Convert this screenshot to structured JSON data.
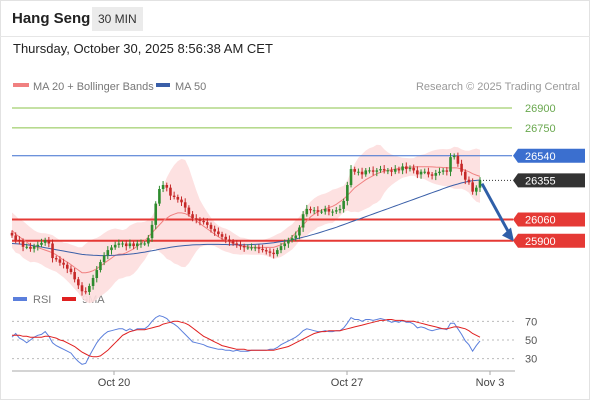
{
  "header": {
    "symbol": "Hang Seng",
    "interval": "30 MIN",
    "timestamp": "Thursday, October 30, 2025 8:56:38 AM CET"
  },
  "legend": {
    "bollinger_label": "MA 20 + Bollinger Bands",
    "ma50_label": "MA 50",
    "rsi_label": "RSI",
    "rsi_ma_label": "9MA"
  },
  "source": "Research © 2025 Trading Central",
  "colors": {
    "bullish_candle": "#2e8b2e",
    "bearish_candle": "#c62828",
    "bollinger_fill": "#fddede",
    "ma20": "#f08080",
    "ma50": "#3a5fa8",
    "rsi": "#5b7fdc",
    "rsi_ma": "#e02020",
    "resistance": "#8bc34a",
    "support": "#e53935",
    "pivot": "#3b6fcf",
    "current": "#333333"
  },
  "chart_data": [
    {
      "type": "candlestick",
      "title": "Hang Seng",
      "x_tick_labels": [
        "Oct 20",
        "Oct 27",
        "Nov 3"
      ],
      "ylim": [
        25620,
        26960
      ],
      "levels": [
        {
          "value": 26900,
          "label": "26900",
          "kind": "resistance"
        },
        {
          "value": 26750,
          "label": "26750",
          "kind": "resistance"
        },
        {
          "value": 26540,
          "label": "26540",
          "kind": "pivot"
        },
        {
          "value": 26355,
          "label": "26355",
          "kind": "current"
        },
        {
          "value": 26060,
          "label": "26060",
          "kind": "support"
        },
        {
          "value": 25900,
          "label": "25900",
          "kind": "support"
        }
      ],
      "close": [
        25940,
        25905,
        25900,
        25855,
        25855,
        25840,
        25860,
        25870,
        25885,
        25905,
        25880,
        25770,
        25760,
        25735,
        25720,
        25690,
        25665,
        25610,
        25565,
        25520,
        25515,
        25560,
        25620,
        25680,
        25740,
        25790,
        25830,
        25850,
        25870,
        25880,
        25880,
        25860,
        25880,
        25860,
        25880,
        25880,
        25880,
        25920,
        26020,
        26180,
        26290,
        26320,
        26300,
        26240,
        26230,
        26210,
        26190,
        26150,
        26100,
        26070,
        26060,
        26050,
        26040,
        26020,
        25990,
        25970,
        25950,
        25930,
        25910,
        25895,
        25880,
        25870,
        25860,
        25850,
        25850,
        25850,
        25850,
        25840,
        25830,
        25820,
        25810,
        25800,
        25830,
        25860,
        25880,
        25905,
        25920,
        25940,
        26000,
        26100,
        26140,
        26130,
        26130,
        26120,
        26120,
        26140,
        26120,
        26120,
        26130,
        26140,
        26200,
        26320,
        26440,
        26420,
        26420,
        26400,
        26430,
        26430,
        26420,
        26430,
        26440,
        26430,
        26430,
        26420,
        26440,
        26430,
        26460,
        26440,
        26450,
        26430,
        26400,
        26420,
        26420,
        26400,
        26390,
        26410,
        26420,
        26430,
        26420,
        26530,
        26540,
        26480,
        26420,
        26360,
        26340,
        26270,
        26300,
        26355
      ],
      "ma20": [
        25980,
        25950,
        25930,
        25910,
        25890,
        25870,
        25860,
        25850,
        25840,
        25830,
        25820,
        25810,
        25795,
        25775,
        25755,
        25740,
        25720,
        25700,
        25680,
        25660,
        25660,
        25665,
        25675,
        25690,
        25710,
        25730,
        25750,
        25770,
        25790,
        25800,
        25800,
        25810,
        25825,
        25840,
        25860,
        25880,
        25900,
        25930,
        25960,
        25990,
        26020,
        26050,
        26070,
        26090,
        26100,
        26110,
        26110,
        26105,
        26090,
        26070,
        26050,
        26030,
        26010,
        25990,
        25970,
        25950,
        25930,
        25915,
        25905,
        25895,
        25880,
        25870,
        25860,
        25860,
        25855,
        25850,
        25850,
        25850,
        25850,
        25850,
        25850,
        25850,
        25860,
        25870,
        25890,
        25910,
        25930,
        25960,
        25990,
        26020,
        26050,
        26080,
        26100,
        26120,
        26130,
        26140,
        26150,
        26160,
        26175,
        26195,
        26215,
        26240,
        26270,
        26300,
        26320,
        26340,
        26360,
        26375,
        26390,
        26405,
        26415,
        26425,
        26430,
        26435,
        26440,
        26445,
        26450,
        26452,
        26455,
        26456,
        26458,
        26458,
        26458,
        26457,
        26456,
        26455,
        26454,
        26452,
        26450,
        26448,
        26450,
        26448,
        26440,
        26430,
        26420,
        26405,
        26395,
        26385
      ],
      "ma50": [
        25880,
        25878,
        25876,
        25873,
        25870,
        25866,
        25862,
        25858,
        25853,
        25848,
        25843,
        25838,
        25833,
        25828,
        25823,
        25818,
        25813,
        25808,
        25803,
        25798,
        25795,
        25793,
        25791,
        25790,
        25789,
        25789,
        25789,
        25790,
        25791,
        25793,
        25795,
        25797,
        25800,
        25803,
        25807,
        25811,
        25815,
        25820,
        25825,
        25830,
        25836,
        25841,
        25846,
        25851,
        25855,
        25859,
        25862,
        25865,
        25867,
        25869,
        25870,
        25871,
        25872,
        25873,
        25873,
        25873,
        25873,
        25872,
        25872,
        25871,
        25870,
        25870,
        25870,
        25870,
        25871,
        25872,
        25873,
        25875,
        25877,
        25880,
        25883,
        25886,
        25890,
        25894,
        25898,
        25903,
        25908,
        25914,
        25920,
        25927,
        25934,
        25942,
        25950,
        25958,
        25966,
        25975,
        25984,
        25993,
        26002,
        26012,
        26022,
        26032,
        26042,
        26052,
        26062,
        26072,
        26082,
        26092,
        26102,
        26112,
        26122,
        26132,
        26142,
        26152,
        26162,
        26172,
        26182,
        26192,
        26202,
        26212,
        26222,
        26232,
        26242,
        26252,
        26262,
        26272,
        26282,
        26292,
        26302,
        26312,
        26320,
        26328,
        26336,
        26342,
        26348,
        26352,
        26355,
        26358
      ]
    },
    {
      "type": "line",
      "title": "RSI",
      "ylim": [
        20,
        80
      ],
      "y_ticks": [
        30,
        50,
        70
      ],
      "series": [
        {
          "name": "RSI",
          "values": [
            53,
            57,
            52,
            50,
            47,
            50,
            53,
            55,
            56,
            59,
            54,
            47,
            44,
            42,
            40,
            38,
            36,
            31,
            27,
            24,
            25,
            33,
            40,
            47,
            52,
            56,
            59,
            60,
            61,
            62,
            62,
            60,
            62,
            60,
            62,
            62,
            62,
            65,
            70,
            74,
            76,
            75,
            73,
            69,
            67,
            64,
            60,
            56,
            52,
            48,
            47,
            46,
            45,
            43,
            42,
            41,
            40,
            40,
            39,
            39,
            38,
            39,
            38,
            38,
            38,
            39,
            39,
            39,
            39,
            39,
            40,
            40,
            42,
            45,
            47,
            49,
            51,
            53,
            56,
            60,
            62,
            61,
            60,
            59,
            59,
            60,
            59,
            59,
            60,
            60,
            63,
            68,
            74,
            72,
            72,
            70,
            72,
            72,
            71,
            72,
            73,
            72,
            71,
            69,
            70,
            69,
            71,
            69,
            69,
            67,
            63,
            64,
            63,
            61,
            60,
            61,
            62,
            62,
            61,
            68,
            68,
            62,
            56,
            49,
            45,
            38,
            44,
            49
          ]
        },
        {
          "name": "9MA",
          "values": [
            55,
            55,
            55,
            54,
            54,
            53,
            53,
            53,
            53,
            54,
            54,
            53,
            52,
            50,
            49,
            47,
            45,
            43,
            40,
            37,
            35,
            33,
            32,
            32,
            33,
            36,
            39,
            43,
            47,
            51,
            55,
            57,
            59,
            60,
            61,
            61,
            61,
            62,
            63,
            64,
            65,
            67,
            68,
            69,
            70,
            70,
            69,
            68,
            66,
            63,
            60,
            57,
            54,
            52,
            50,
            48,
            46,
            44,
            43,
            42,
            41,
            40,
            40,
            40,
            39,
            39,
            39,
            39,
            39,
            39,
            39,
            39,
            40,
            41,
            42,
            43,
            45,
            47,
            49,
            51,
            53,
            55,
            57,
            58,
            59,
            59,
            60,
            60,
            60,
            60,
            61,
            62,
            63,
            64,
            65,
            66,
            67,
            68,
            69,
            70,
            71,
            71,
            72,
            72,
            71,
            71,
            71,
            70,
            70,
            70,
            69,
            68,
            67,
            66,
            65,
            64,
            63,
            62,
            62,
            63,
            64,
            64,
            63,
            62,
            60,
            57,
            55,
            53
          ]
        }
      ]
    }
  ]
}
